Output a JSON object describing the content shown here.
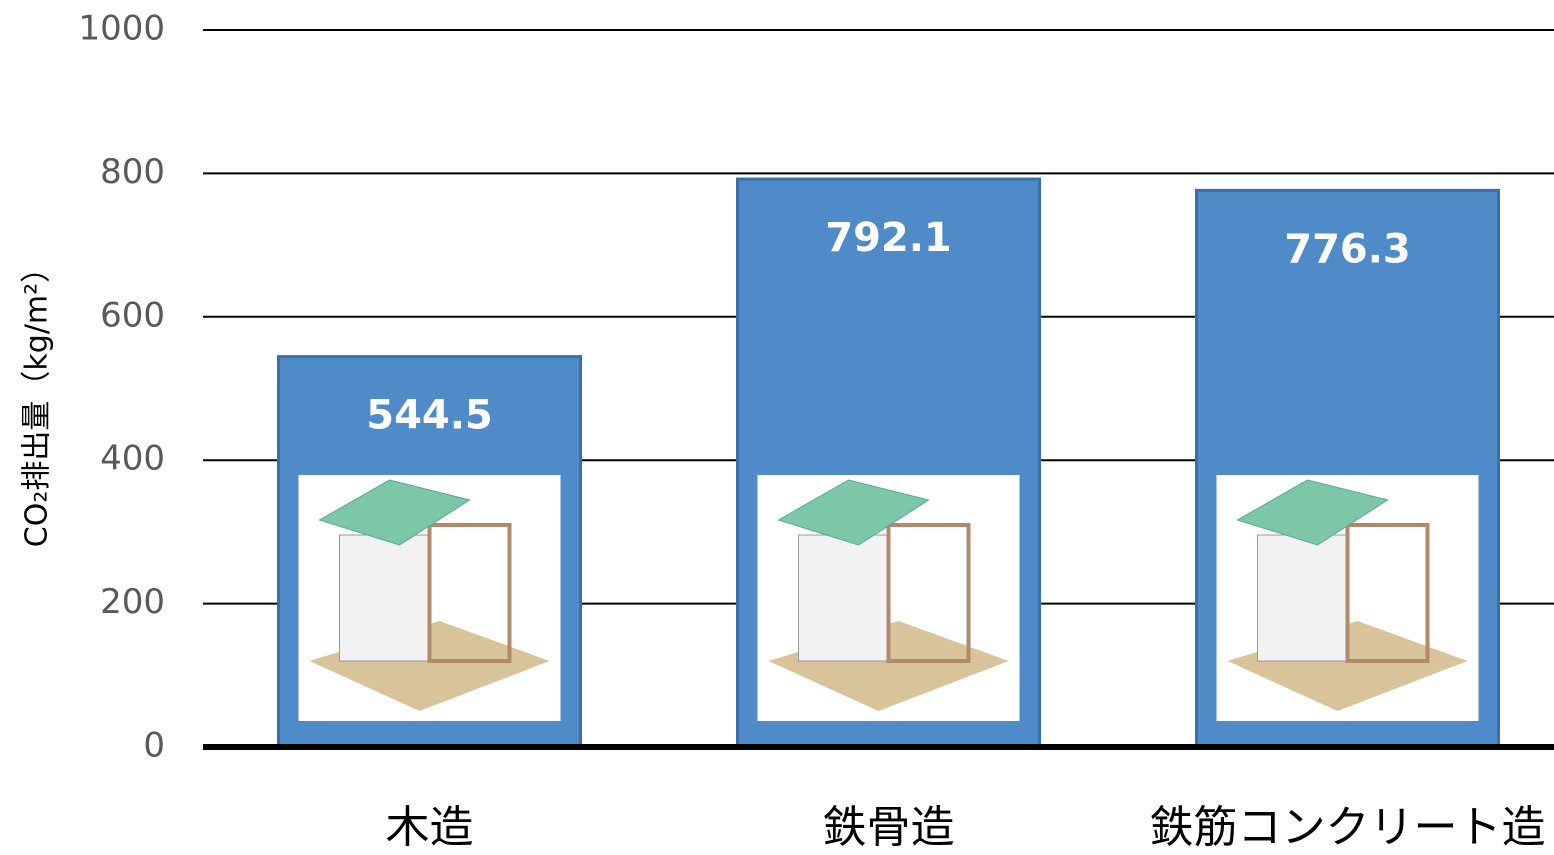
{
  "chart_data": {
    "type": "bar",
    "y_label": "CO₂排出量（kg/m²）",
    "categories": [
      "木造",
      "鉄骨造",
      "鉄筋コンクリート造"
    ],
    "values": [
      544.5,
      792.1,
      776.3
    ],
    "color": "#4f8bc9",
    "ylim": [
      0,
      1000
    ],
    "yticks": [
      0,
      200,
      400,
      600,
      800,
      1000
    ],
    "grid": true
  }
}
